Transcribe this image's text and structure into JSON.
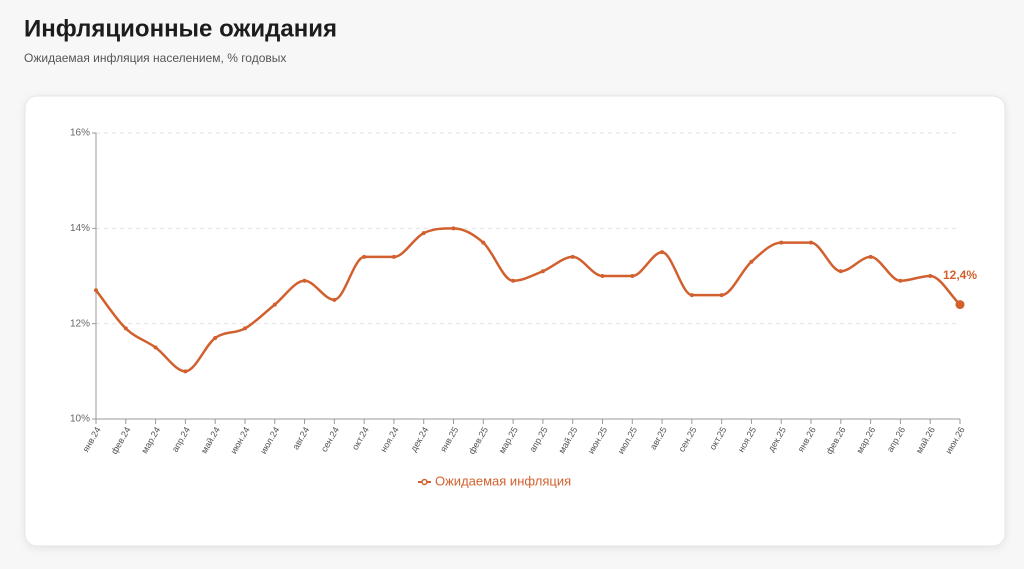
{
  "title": "Инфляционные ожидания",
  "subtitle": "Ожидаемая инфляция населением, % годовых",
  "chart_data": {
    "type": "line",
    "categories": [
      "янв.24",
      "фев.24",
      "мар.24",
      "апр.24",
      "май.24",
      "июн.24",
      "июл.24",
      "авг.24",
      "сен.24",
      "окт.24",
      "ноя.24",
      "дек.24",
      "янв.25",
      "фев.25",
      "мар.25",
      "апр.25",
      "май.25",
      "июн.25",
      "июл.25",
      "авг.25",
      "сен.25",
      "окт.25",
      "ноя.25",
      "дек.25",
      "янв.26",
      "фев.26",
      "мар.26",
      "апр.26",
      "май.26",
      "июн.26"
    ],
    "series": [
      {
        "name": "Ожидаемая инфляция",
        "color": "#d2602f",
        "values": [
          12.7,
          11.9,
          11.5,
          11.0,
          11.7,
          11.9,
          12.4,
          12.9,
          12.5,
          13.4,
          13.4,
          13.9,
          14.0,
          13.7,
          12.9,
          13.1,
          13.4,
          13.0,
          13.0,
          13.5,
          12.6,
          12.6,
          13.3,
          13.7,
          13.7,
          13.1,
          13.4,
          12.9,
          13.0,
          12.4
        ],
        "value_labels": [
          null,
          null,
          null,
          null,
          null,
          null,
          null,
          null,
          null,
          null,
          null,
          null,
          null,
          null,
          null,
          null,
          null,
          null,
          null,
          null,
          null,
          null,
          null,
          null,
          null,
          null,
          null,
          null,
          null,
          "12,4%"
        ]
      }
    ],
    "ylim": [
      10,
      16
    ],
    "yticks": [
      {
        "value": 10,
        "label": "10%"
      },
      {
        "value": 12,
        "label": "12%"
      },
      {
        "value": 14,
        "label": "14%"
      },
      {
        "value": 16,
        "label": "16%"
      }
    ],
    "grid": true
  }
}
